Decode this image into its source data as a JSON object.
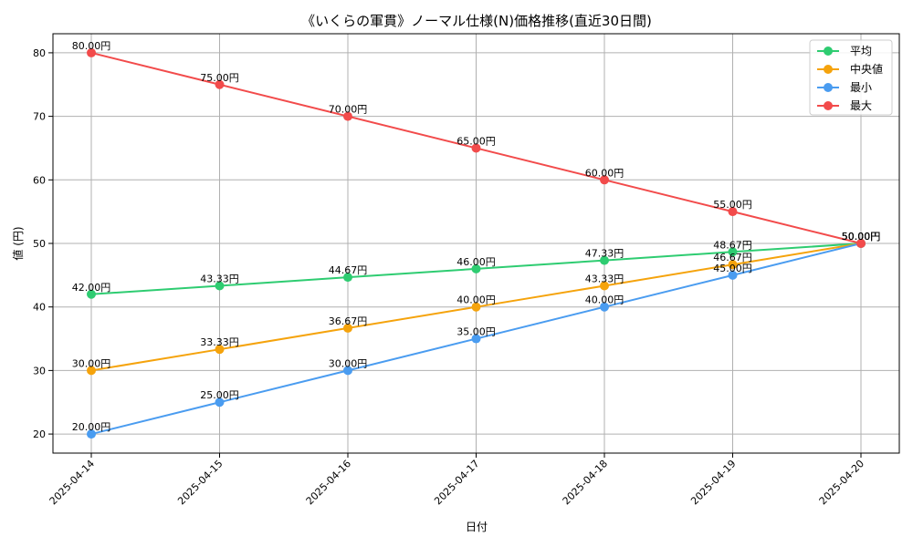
{
  "chart_data": {
    "type": "line",
    "title": "《いくらの軍貫》ノーマル仕様(N)価格推移(直近30日間)",
    "xlabel": "日付",
    "ylabel": "値 (円)",
    "x": [
      "2025-04-14",
      "2025-04-15",
      "2025-04-16",
      "2025-04-17",
      "2025-04-18",
      "2025-04-19",
      "2025-04-20"
    ],
    "ylim": [
      17,
      83
    ],
    "yticks": [
      "20",
      "30",
      "40",
      "50",
      "60",
      "70",
      "80"
    ],
    "grid": true,
    "legend_position": "top-right",
    "series": [
      {
        "name": "平均",
        "color": "#2ecc71",
        "values": [
          42.0,
          43.33,
          44.67,
          46.0,
          47.33,
          48.67,
          50.0
        ],
        "labels": [
          "42.00円",
          "43.33円",
          "44.67円",
          "46.00円",
          "47.33円",
          "48.67円",
          "50.00円"
        ]
      },
      {
        "name": "中央値",
        "color": "#f5a30c",
        "values": [
          30.0,
          33.33,
          36.67,
          40.0,
          43.33,
          46.67,
          50.0
        ],
        "labels": [
          "30.00円",
          "33.33円",
          "36.67円",
          "40.00円",
          "43.33円",
          "46.67円",
          "50.00円"
        ]
      },
      {
        "name": "最小",
        "color": "#4a9cf0",
        "values": [
          20.0,
          25.0,
          30.0,
          35.0,
          40.0,
          45.0,
          50.0
        ],
        "labels": [
          "20.00円",
          "25.00円",
          "30.00円",
          "35.00円",
          "40.00円",
          "45.00円",
          "50.00円"
        ]
      },
      {
        "name": "最大",
        "color": "#f24b4b",
        "values": [
          80.0,
          75.0,
          70.0,
          65.0,
          60.0,
          55.0,
          50.0
        ],
        "labels": [
          "80.00円",
          "75.00円",
          "70.00円",
          "65.00円",
          "60.00円",
          "55.00円",
          "50.00円"
        ]
      }
    ]
  }
}
